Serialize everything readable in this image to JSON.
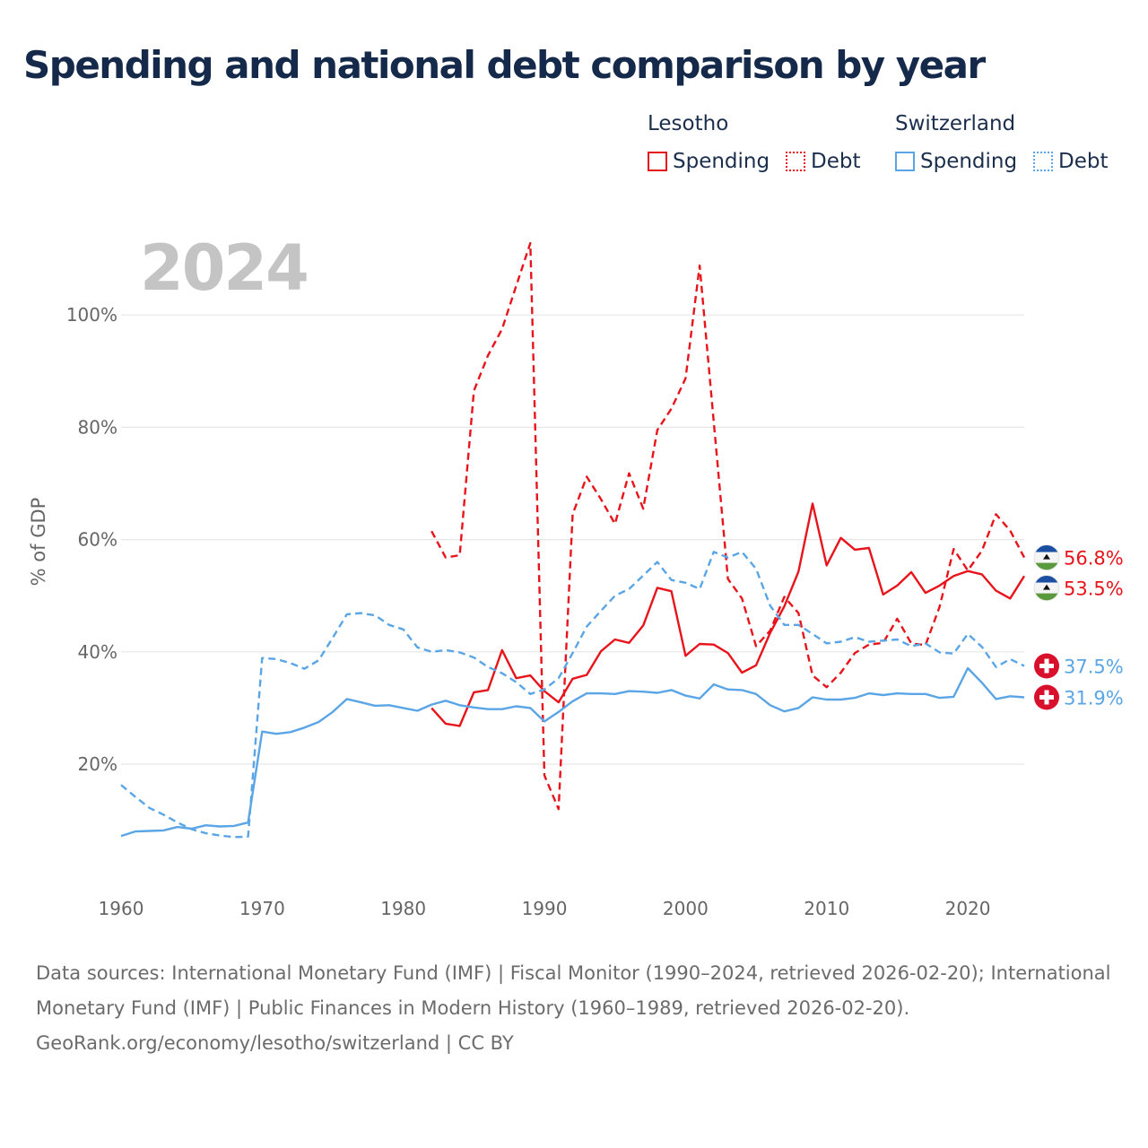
{
  "title": "Spending and national debt comparison by year",
  "legend": {
    "groups": [
      {
        "name": "Lesotho",
        "color": "#e8141b",
        "items": [
          {
            "label": "Spending",
            "style": "solid"
          },
          {
            "label": "Debt",
            "style": "dotted"
          }
        ]
      },
      {
        "name": "Switzerland",
        "color": "#5aa5e6",
        "items": [
          {
            "label": "Spending",
            "style": "solid"
          },
          {
            "label": "Debt",
            "style": "dotted"
          }
        ]
      }
    ]
  },
  "year_watermark": "2024",
  "footer": {
    "sources": "Data sources: International Monetary Fund (IMF) | Fiscal Monitor (1990–2024, retrieved 2026-02-20); International Monetary Fund (IMF) | Public Finances in Modern History (1960–1989, retrieved 2026-02-20).",
    "attribution": "GeoRank.org/economy/lesotho/switzerland | CC BY"
  },
  "chart_data": {
    "type": "line",
    "title": "Spending and national debt comparison by year",
    "xlabel": "",
    "ylabel": "% of GDP",
    "xlim": [
      1960,
      2024
    ],
    "ylim": [
      0,
      115
    ],
    "x_ticks": [
      1960,
      1970,
      1980,
      1990,
      2000,
      2010,
      2020
    ],
    "y_ticks": [
      20,
      40,
      60,
      80,
      100
    ],
    "y_tick_labels": [
      "20%",
      "40%",
      "60%",
      "80%",
      "100%"
    ],
    "grid": true,
    "series": [
      {
        "name": "Lesotho Spending",
        "country": "Lesotho",
        "measure": "Spending",
        "color": "#e8141b",
        "dash": "solid",
        "end_label": "53.5%",
        "flag": "lesotho",
        "points": [
          [
            1982,
            30.0
          ],
          [
            1983,
            27.2
          ],
          [
            1984,
            26.8
          ],
          [
            1985,
            32.8
          ],
          [
            1986,
            33.2
          ],
          [
            1987,
            40.3
          ],
          [
            1988,
            35.3
          ],
          [
            1989,
            35.8
          ],
          [
            1990,
            33.0
          ],
          [
            1991,
            31.0
          ],
          [
            1992,
            35.2
          ],
          [
            1993,
            35.9
          ],
          [
            1994,
            40.1
          ],
          [
            1995,
            42.2
          ],
          [
            1996,
            41.6
          ],
          [
            1997,
            44.7
          ],
          [
            1998,
            51.4
          ],
          [
            1999,
            50.8
          ],
          [
            2000,
            39.3
          ],
          [
            2001,
            41.4
          ],
          [
            2002,
            41.3
          ],
          [
            2003,
            39.8
          ],
          [
            2004,
            36.3
          ],
          [
            2005,
            37.6
          ],
          [
            2006,
            43.4
          ],
          [
            2007,
            48.1
          ],
          [
            2008,
            54.3
          ],
          [
            2009,
            66.4
          ],
          [
            2010,
            55.4
          ],
          [
            2011,
            60.3
          ],
          [
            2012,
            58.2
          ],
          [
            2013,
            58.5
          ],
          [
            2014,
            50.2
          ],
          [
            2015,
            51.8
          ],
          [
            2016,
            54.2
          ],
          [
            2017,
            50.5
          ],
          [
            2018,
            51.8
          ],
          [
            2019,
            53.5
          ],
          [
            2020,
            54.4
          ],
          [
            2021,
            53.8
          ],
          [
            2022,
            50.9
          ],
          [
            2023,
            49.5
          ],
          [
            2024,
            53.5
          ]
        ]
      },
      {
        "name": "Lesotho Debt",
        "country": "Lesotho",
        "measure": "Debt",
        "color": "#e8141b",
        "dash": "dashed",
        "end_label": "56.8%",
        "flag": "lesotho",
        "points": [
          [
            1982,
            61.5
          ],
          [
            1983,
            56.8
          ],
          [
            1984,
            57.2
          ],
          [
            1985,
            86.5
          ],
          [
            1986,
            92.8
          ],
          [
            1987,
            97.5
          ],
          [
            1988,
            105.2
          ],
          [
            1989,
            112.8
          ],
          [
            1990,
            18.0
          ],
          [
            1991,
            12.0
          ],
          [
            1992,
            64.5
          ],
          [
            1993,
            71.2
          ],
          [
            1994,
            67.2
          ],
          [
            1995,
            62.8
          ],
          [
            1996,
            71.8
          ],
          [
            1997,
            65.5
          ],
          [
            1998,
            79.5
          ],
          [
            1999,
            83.3
          ],
          [
            2000,
            88.7
          ],
          [
            2001,
            108.8
          ],
          [
            2002,
            81.0
          ],
          [
            2003,
            53.0
          ],
          [
            2004,
            49.5
          ],
          [
            2005,
            41.0
          ],
          [
            2006,
            43.8
          ],
          [
            2007,
            49.8
          ],
          [
            2008,
            46.9
          ],
          [
            2009,
            35.8
          ],
          [
            2010,
            33.7
          ],
          [
            2011,
            36.3
          ],
          [
            2012,
            39.8
          ],
          [
            2013,
            41.3
          ],
          [
            2014,
            41.6
          ],
          [
            2015,
            45.9
          ],
          [
            2016,
            41.5
          ],
          [
            2017,
            41.2
          ],
          [
            2018,
            48.0
          ],
          [
            2019,
            58.3
          ],
          [
            2020,
            54.5
          ],
          [
            2021,
            58.0
          ],
          [
            2022,
            64.5
          ],
          [
            2023,
            61.6
          ],
          [
            2024,
            56.8
          ]
        ]
      },
      {
        "name": "Switzerland Spending",
        "country": "Switzerland",
        "measure": "Spending",
        "color": "#5aa5e6",
        "dash": "solid",
        "end_label": "31.9%",
        "flag": "switzerland",
        "points": [
          [
            1960,
            7.2
          ],
          [
            1961,
            8.0
          ],
          [
            1962,
            8.1
          ],
          [
            1963,
            8.2
          ],
          [
            1964,
            8.8
          ],
          [
            1965,
            8.5
          ],
          [
            1966,
            9.1
          ],
          [
            1967,
            8.9
          ],
          [
            1968,
            9.0
          ],
          [
            1969,
            9.6
          ],
          [
            1970,
            25.8
          ],
          [
            1971,
            25.4
          ],
          [
            1972,
            25.7
          ],
          [
            1973,
            26.5
          ],
          [
            1974,
            27.5
          ],
          [
            1975,
            29.3
          ],
          [
            1976,
            31.6
          ],
          [
            1977,
            31.0
          ],
          [
            1978,
            30.4
          ],
          [
            1979,
            30.5
          ],
          [
            1980,
            30.0
          ],
          [
            1981,
            29.5
          ],
          [
            1982,
            30.6
          ],
          [
            1983,
            31.3
          ],
          [
            1984,
            30.5
          ],
          [
            1985,
            30.1
          ],
          [
            1986,
            29.8
          ],
          [
            1987,
            29.8
          ],
          [
            1988,
            30.3
          ],
          [
            1989,
            30.0
          ],
          [
            1990,
            27.6
          ],
          [
            1991,
            29.3
          ],
          [
            1992,
            31.2
          ],
          [
            1993,
            32.6
          ],
          [
            1994,
            32.6
          ],
          [
            1995,
            32.5
          ],
          [
            1996,
            33.0
          ],
          [
            1997,
            32.9
          ],
          [
            1998,
            32.7
          ],
          [
            1999,
            33.2
          ],
          [
            2000,
            32.2
          ],
          [
            2001,
            31.7
          ],
          [
            2002,
            34.2
          ],
          [
            2003,
            33.3
          ],
          [
            2004,
            33.2
          ],
          [
            2005,
            32.5
          ],
          [
            2006,
            30.5
          ],
          [
            2007,
            29.4
          ],
          [
            2008,
            30.0
          ],
          [
            2009,
            31.9
          ],
          [
            2010,
            31.5
          ],
          [
            2011,
            31.5
          ],
          [
            2012,
            31.8
          ],
          [
            2013,
            32.6
          ],
          [
            2014,
            32.3
          ],
          [
            2015,
            32.6
          ],
          [
            2016,
            32.5
          ],
          [
            2017,
            32.5
          ],
          [
            2018,
            31.8
          ],
          [
            2019,
            32.0
          ],
          [
            2020,
            37.1
          ],
          [
            2021,
            34.5
          ],
          [
            2022,
            31.6
          ],
          [
            2023,
            32.1
          ],
          [
            2024,
            31.9
          ]
        ]
      },
      {
        "name": "Switzerland Debt",
        "country": "Switzerland",
        "measure": "Debt",
        "color": "#5aa5e6",
        "dash": "dashed",
        "end_label": "37.5%",
        "flag": "switzerland",
        "points": [
          [
            1960,
            16.3
          ],
          [
            1961,
            14.2
          ],
          [
            1962,
            12.2
          ],
          [
            1963,
            11.0
          ],
          [
            1964,
            9.6
          ],
          [
            1965,
            8.4
          ],
          [
            1966,
            7.7
          ],
          [
            1967,
            7.3
          ],
          [
            1968,
            7.0
          ],
          [
            1969,
            7.1
          ],
          [
            1970,
            38.9
          ],
          [
            1971,
            38.7
          ],
          [
            1972,
            38.0
          ],
          [
            1973,
            37.0
          ],
          [
            1974,
            38.5
          ],
          [
            1975,
            42.5
          ],
          [
            1976,
            46.7
          ],
          [
            1977,
            46.9
          ],
          [
            1978,
            46.5
          ],
          [
            1979,
            44.8
          ],
          [
            1980,
            44.0
          ],
          [
            1981,
            40.8
          ],
          [
            1982,
            40.0
          ],
          [
            1983,
            40.3
          ],
          [
            1984,
            39.9
          ],
          [
            1985,
            39.0
          ],
          [
            1986,
            37.3
          ],
          [
            1987,
            36.2
          ],
          [
            1988,
            34.6
          ],
          [
            1989,
            32.5
          ],
          [
            1990,
            33.3
          ],
          [
            1991,
            35.3
          ],
          [
            1992,
            39.8
          ],
          [
            1993,
            44.5
          ],
          [
            1994,
            47.3
          ],
          [
            1995,
            50.0
          ],
          [
            1996,
            51.2
          ],
          [
            1997,
            53.6
          ],
          [
            1998,
            56.0
          ],
          [
            1999,
            52.8
          ],
          [
            2000,
            52.3
          ],
          [
            2001,
            51.2
          ],
          [
            2002,
            57.8
          ],
          [
            2003,
            56.8
          ],
          [
            2004,
            57.8
          ],
          [
            2005,
            54.8
          ],
          [
            2006,
            48.2
          ],
          [
            2007,
            44.8
          ],
          [
            2008,
            44.8
          ],
          [
            2009,
            43.2
          ],
          [
            2010,
            41.5
          ],
          [
            2011,
            41.8
          ],
          [
            2012,
            42.6
          ],
          [
            2013,
            41.8
          ],
          [
            2014,
            42.0
          ],
          [
            2015,
            42.2
          ],
          [
            2016,
            41.0
          ],
          [
            2017,
            41.5
          ],
          [
            2018,
            39.9
          ],
          [
            2019,
            39.7
          ],
          [
            2020,
            43.2
          ],
          [
            2021,
            40.9
          ],
          [
            2022,
            37.3
          ],
          [
            2023,
            38.7
          ],
          [
            2024,
            37.5
          ]
        ]
      }
    ]
  }
}
